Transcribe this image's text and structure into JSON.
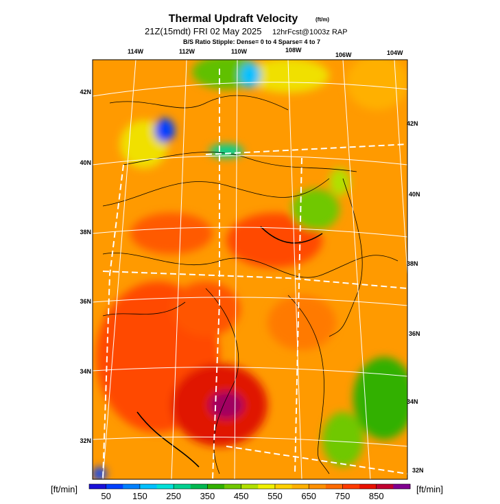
{
  "header": {
    "title": "Thermal Updraft Velocity",
    "title_unit": "(ft/m)",
    "subtitle": "21Z(15mdt) FRI 02 May 2025",
    "subtitle_run": "12hrFcst@1003z RAP",
    "stipple_note": "B/S Ratio Stipple:  Dense= 0 to 4  Sparse= 4 to 7"
  },
  "map": {
    "lon_labels_top": [
      "114W",
      "112W",
      "110W",
      "108W",
      "106W",
      "104W"
    ],
    "lat_labels_left": [
      "42N",
      "40N",
      "38N",
      "36N",
      "34N",
      "32N"
    ],
    "lat_labels_right": [
      "42N",
      "40N",
      "38N",
      "36N",
      "34N",
      "32N"
    ]
  },
  "colorbar": {
    "unit_left": "[ft/min]",
    "unit_right": "[ft/min]",
    "range": [
      0,
      950
    ],
    "bin_width": 50,
    "ticks": [
      50,
      150,
      250,
      350,
      450,
      550,
      650,
      750,
      850
    ],
    "colors": [
      "#1a10d8",
      "#0040ff",
      "#0080ff",
      "#00c0ff",
      "#00e0d8",
      "#00d090",
      "#00b850",
      "#30b000",
      "#70c800",
      "#b0e000",
      "#f0f000",
      "#ffd000",
      "#ffb000",
      "#ff9000",
      "#ff6a00",
      "#ff3a00",
      "#e81000",
      "#c00030",
      "#800090"
    ]
  }
}
